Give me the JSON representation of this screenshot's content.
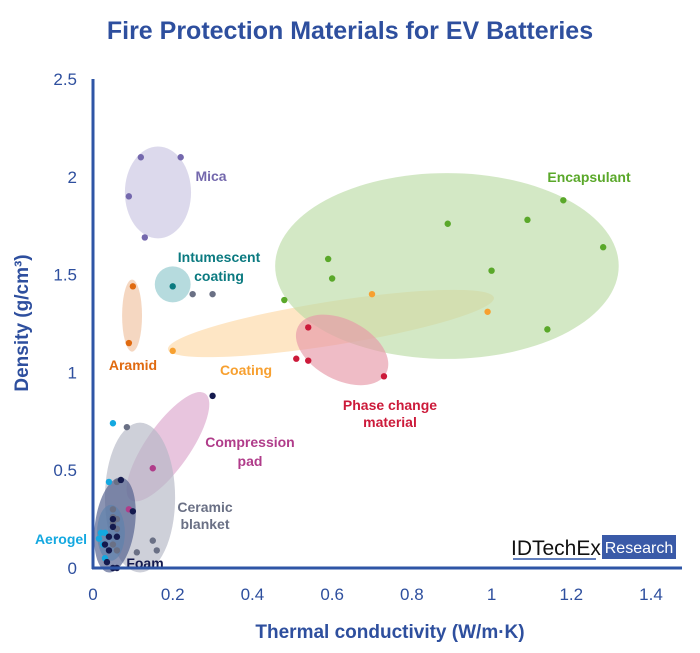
{
  "chart_data": {
    "type": "scatter",
    "title": "Fire Protection Materials for EV Batteries",
    "xlabel": "Thermal conductivity (W/m·K)",
    "ylabel": "Density (g/cm³)",
    "xlim": [
      0,
      1.4
    ],
    "ylim": [
      0,
      2.5
    ],
    "xticks": [
      "0",
      "0.2",
      "0.4",
      "0.6",
      "0.8",
      "1",
      "1.2",
      "1.4"
    ],
    "yticks": [
      "0",
      "0.5",
      "1",
      "1.5",
      "2",
      "2.5"
    ],
    "grid": false,
    "logo": {
      "text": "IDTechEx",
      "badge": "Research"
    },
    "series": [
      {
        "name": "Mica",
        "color": "#7468ad",
        "fill": "#c9c5e2",
        "ellipse": {
          "cx": 0.163,
          "cy": 1.92,
          "rx": 0.083,
          "ry": 0.235,
          "angle": 0
        },
        "points": [
          [
            0.12,
            2.1
          ],
          [
            0.22,
            2.1
          ],
          [
            0.09,
            1.9
          ],
          [
            0.13,
            1.69
          ]
        ]
      },
      {
        "name": "Intumescent coating",
        "color": "#0b7a80",
        "fill": "#8fc7cc",
        "ellipse": {
          "cx": 0.2,
          "cy": 1.45,
          "rx": 0.045,
          "ry": 0.092,
          "angle": 0
        },
        "points": [
          [
            0.2,
            1.44
          ]
        ]
      },
      {
        "name": "Aramid",
        "color": "#e06a10",
        "fill": "#f0c29f",
        "ellipse": {
          "cx": 0.098,
          "cy": 1.29,
          "rx": 0.025,
          "ry": 0.184,
          "angle": 0
        },
        "points": [
          [
            0.1,
            1.44
          ],
          [
            0.09,
            1.15
          ]
        ]
      },
      {
        "name": "Coating",
        "color": "#f7a030",
        "fill": "#fdd9a6",
        "ellipse": {
          "cx": 0.597,
          "cy": 1.25,
          "rx": 0.414,
          "ry": 0.112,
          "angle": -9
        },
        "points": [
          [
            0.2,
            1.11
          ],
          [
            0.7,
            1.4
          ],
          [
            0.99,
            1.31
          ]
        ]
      },
      {
        "name": "Encapsulant",
        "color": "#5aa82a",
        "fill": "#bcdca6",
        "ellipse": {
          "cx": 0.888,
          "cy": 1.544,
          "rx": 0.431,
          "ry": 0.475,
          "angle": 0
        },
        "points": [
          [
            0.48,
            1.37
          ],
          [
            0.59,
            1.58
          ],
          [
            0.6,
            1.48
          ],
          [
            0.89,
            1.76
          ],
          [
            1.0,
            1.52
          ],
          [
            1.09,
            1.78
          ],
          [
            1.18,
            1.88
          ],
          [
            1.28,
            1.64
          ],
          [
            1.14,
            1.22
          ]
        ]
      },
      {
        "name": "Phase change material",
        "color": "#cc1a3a",
        "fill": "#e698a8",
        "ellipse": {
          "cx": 0.625,
          "cy": 1.115,
          "rx": 0.125,
          "ry": 0.153,
          "angle": 28
        },
        "points": [
          [
            0.54,
            1.23
          ],
          [
            0.51,
            1.07
          ],
          [
            0.54,
            1.06
          ],
          [
            0.73,
            0.98
          ]
        ]
      },
      {
        "name": "Compression pad",
        "color": "#b03c8a",
        "fill": "#dca6cd",
        "ellipse": {
          "cx": 0.188,
          "cy": 0.62,
          "rx": 0.163,
          "ry": 0.112,
          "angle": -55
        },
        "points": [
          [
            0.15,
            0.51
          ],
          [
            0.09,
            0.3
          ]
        ]
      },
      {
        "name": "Ceramic blanket",
        "color": "#6a7085",
        "fill": "#b3b7c4",
        "ellipse": {
          "cx": 0.118,
          "cy": 0.36,
          "rx": 0.088,
          "ry": 0.383,
          "angle": 0
        },
        "points": [
          [
            0.085,
            0.72
          ],
          [
            0.06,
            0.44
          ],
          [
            0.15,
            0.14
          ],
          [
            0.11,
            0.08
          ],
          [
            0.16,
            0.09
          ],
          [
            0.25,
            1.4
          ],
          [
            0.3,
            1.4
          ],
          [
            0.05,
            0.3
          ],
          [
            0.05,
            0.26
          ],
          [
            0.05,
            0.23
          ],
          [
            0.06,
            0.25
          ],
          [
            0.06,
            0.2
          ],
          [
            0.06,
            0.16
          ],
          [
            0.05,
            0.12
          ],
          [
            0.06,
            0.09
          ]
        ]
      },
      {
        "name": "Aerogel",
        "color": "#14a8e0",
        "fill": "#7ccaec",
        "ellipse": {
          "cx": 0.045,
          "cy": 0.18,
          "rx": 0.035,
          "ry": 0.143,
          "angle": 0
        },
        "points": [
          [
            0.05,
            0.74
          ],
          [
            0.04,
            0.44
          ],
          [
            0.02,
            0.18
          ],
          [
            0.03,
            0.18
          ],
          [
            0.025,
            0.12
          ],
          [
            0.03,
            0.05
          ],
          [
            0.015,
            0.15
          ]
        ]
      },
      {
        "name": "Foam",
        "color": "#141a4e",
        "fill": "#4d5a8a",
        "ellipse": {
          "cx": 0.055,
          "cy": 0.22,
          "rx": 0.05,
          "ry": 0.245,
          "angle": 8
        },
        "points": [
          [
            0.3,
            0.88
          ],
          [
            0.07,
            0.45
          ],
          [
            0.1,
            0.29
          ],
          [
            0.04,
            0.09
          ],
          [
            0.035,
            0.03
          ],
          [
            0.05,
            0.0
          ],
          [
            0.06,
            0.0
          ],
          [
            0.05,
            0.21
          ],
          [
            0.04,
            0.16
          ],
          [
            0.06,
            0.16
          ],
          [
            0.03,
            0.12
          ],
          [
            0.05,
            0.25
          ]
        ]
      }
    ]
  }
}
